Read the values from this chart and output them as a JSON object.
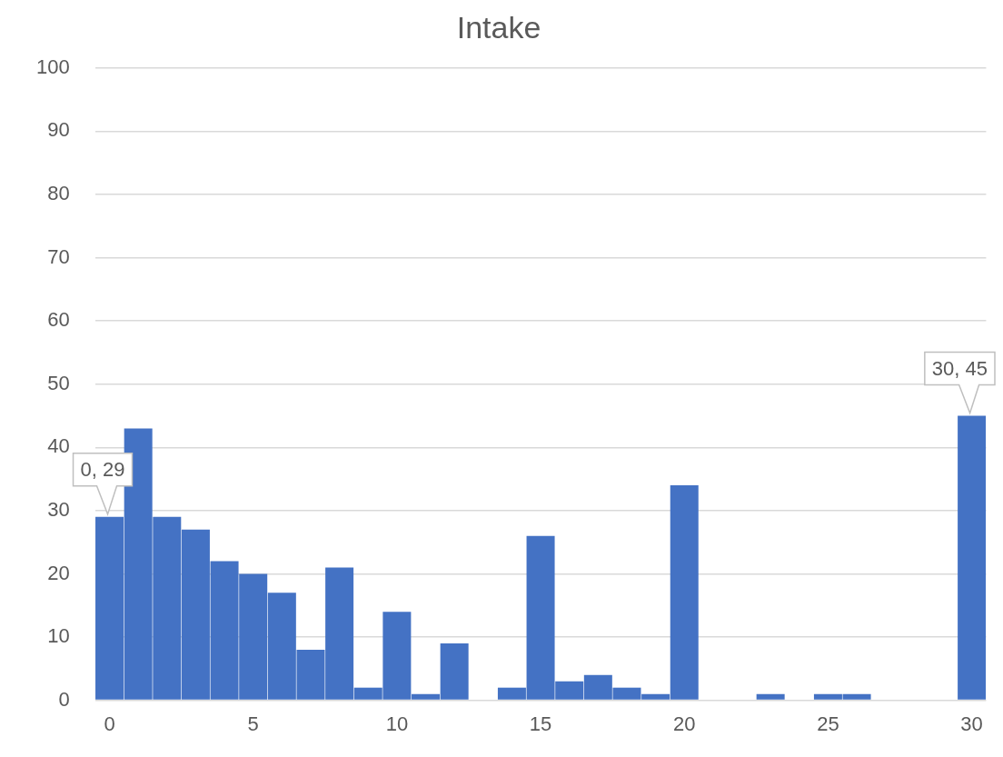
{
  "chart_data": {
    "type": "bar",
    "title": "Intake",
    "x": [
      0,
      1,
      2,
      3,
      4,
      5,
      6,
      7,
      8,
      9,
      10,
      11,
      12,
      13,
      14,
      15,
      16,
      17,
      18,
      19,
      20,
      21,
      22,
      23,
      24,
      25,
      26,
      27,
      28,
      29,
      30
    ],
    "values": [
      29,
      43,
      29,
      27,
      22,
      20,
      17,
      8,
      21,
      2,
      14,
      1,
      9,
      0,
      2,
      26,
      3,
      4,
      2,
      1,
      34,
      0,
      0,
      1,
      0,
      1,
      1,
      0,
      0,
      0,
      45
    ],
    "color": "#4472c4",
    "xlim": [
      -0.5,
      30.5
    ],
    "xticks": [
      0,
      5,
      10,
      15,
      20,
      25,
      30
    ],
    "ylim": [
      0,
      100
    ],
    "yticks": [
      0,
      10,
      20,
      30,
      40,
      50,
      60,
      70,
      80,
      90,
      100
    ],
    "grid": "y",
    "legend": false,
    "annotations": [
      {
        "text": "0, 29",
        "x": 0,
        "y": 29
      },
      {
        "text": "30, 45",
        "x": 30,
        "y": 45
      }
    ]
  }
}
